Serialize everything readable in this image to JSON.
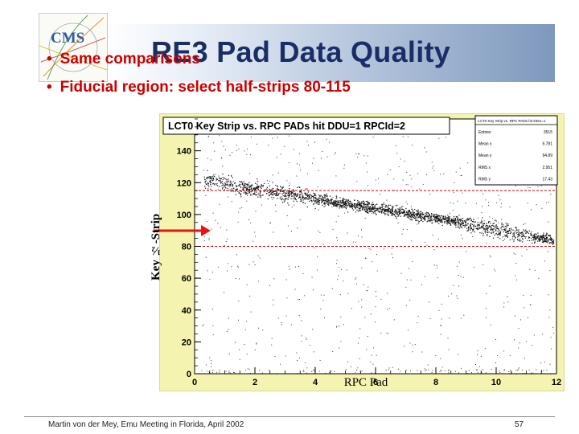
{
  "slide": {
    "title": "RE3 Pad Data Quality",
    "logo_text": "CMS",
    "bullets": [
      "Same comparisons",
      "Fiducial region: select half-strips 80-115"
    ],
    "footer": "Martin von der Mey, Emu Meeting in Florida, April 2002",
    "page_number": "57"
  },
  "colors": {
    "title": "#1a2e66",
    "bullet": "#cc0000",
    "plot_background": "#f4f4b0",
    "cut_line": "#cc0000",
    "arrow": "#ee1111"
  },
  "chart_data": {
    "type": "scatter",
    "title": "LCT0 Key Strip vs. RPC PADs hit DDU=1 RPCId=2",
    "xlabel": "RPC Pad",
    "ylabel": "Key ½-Strip",
    "xlim": [
      0,
      12
    ],
    "ylim": [
      0,
      160
    ],
    "xticks": [
      "0",
      "2",
      "4",
      "6",
      "8",
      "10",
      "12"
    ],
    "yticks": [
      "0",
      "20",
      "40",
      "60",
      "80",
      "100",
      "120",
      "140"
    ],
    "fiducial_cuts": [
      80,
      115
    ],
    "band": {
      "x": [
        0.3,
        2.0,
        4.0,
        6.0,
        8.0,
        10.0,
        11.9
      ],
      "y": [
        122,
        116,
        110,
        104,
        98,
        91,
        84
      ]
    },
    "stats_box": {
      "title": "LCT0 Key Strip vs. RPC PADs hit DDU=1",
      "rows": [
        {
          "label": "Entries",
          "value": "3515"
        },
        {
          "label": "Mean x",
          "value": "5.781"
        },
        {
          "label": "Mean y",
          "value": "94.89"
        },
        {
          "label": "RMS x",
          "value": "2.951"
        },
        {
          "label": "RMS y",
          "value": "17.43"
        }
      ]
    },
    "grid": false,
    "legend": "top-right"
  }
}
